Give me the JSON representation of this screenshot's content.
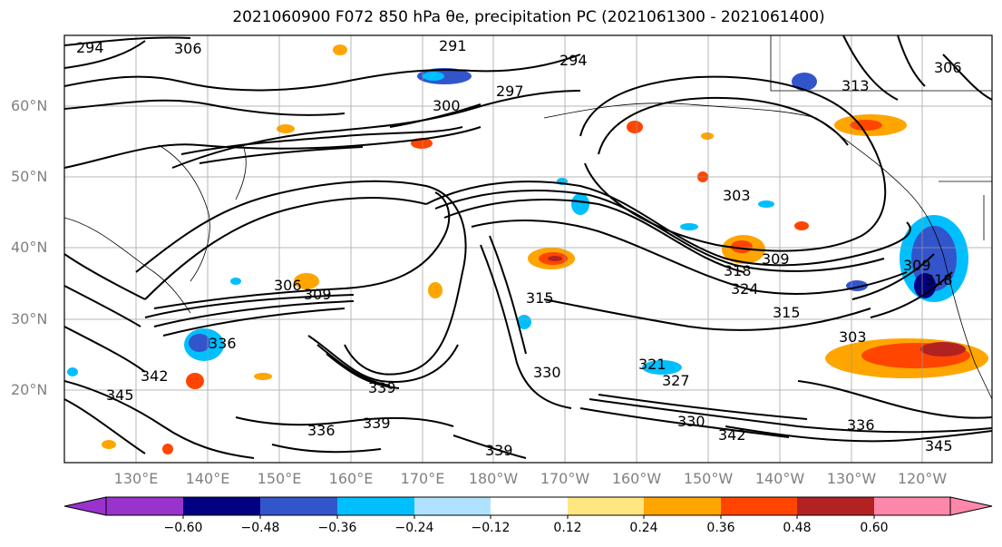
{
  "title": "2021060900 F072 850 hPa θe, precipitation PC (2021061300 - 2021061400)",
  "map": {
    "region": "North Pacific",
    "lat_labels": [
      "60°N",
      "50°N",
      "40°N",
      "30°N",
      "20°N"
    ],
    "lon_labels": [
      "130°E",
      "140°E",
      "150°E",
      "160°E",
      "170°E",
      "180°W",
      "170°W",
      "160°W",
      "150°W",
      "140°W",
      "130°W",
      "120°W"
    ],
    "contour_labels": [
      "294",
      "306",
      "291",
      "294",
      "297",
      "300",
      "313",
      "306",
      "303",
      "309",
      "318",
      "324",
      "315",
      "306",
      "309",
      "336",
      "342",
      "345",
      "339",
      "336",
      "330",
      "321",
      "327",
      "330",
      "342",
      "339",
      "345",
      "303",
      "315",
      "309",
      "318",
      "336",
      "339"
    ]
  },
  "colorbar": {
    "ticks": [
      "−0.60",
      "−0.48",
      "−0.36",
      "−0.24",
      "−0.12",
      "0.12",
      "0.24",
      "0.36",
      "0.48",
      "0.60"
    ],
    "colors": [
      "#9933cc",
      "#000080",
      "#3355cc",
      "#00bfff",
      "#b0e2ff",
      "#ffffff",
      "#ffe680",
      "#ffa500",
      "#ff4500",
      "#b22222",
      "#ff88aa"
    ]
  }
}
